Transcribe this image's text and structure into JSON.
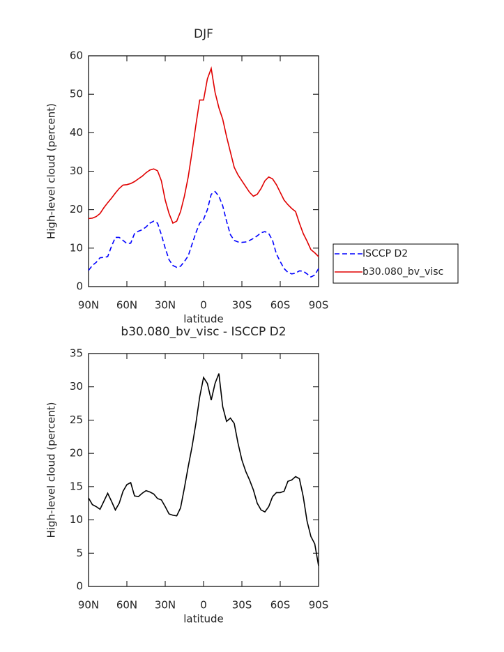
{
  "chart_data": [
    {
      "type": "line",
      "title": "DJF",
      "xlabel": "latitude",
      "ylabel": "High-level cloud (percent)",
      "x": [
        90,
        87,
        84,
        81,
        78,
        75,
        72,
        69,
        66,
        63,
        60,
        57,
        54,
        51,
        48,
        45,
        42,
        39,
        36,
        33,
        30,
        27,
        24,
        21,
        18,
        15,
        12,
        9,
        6,
        3,
        0,
        -3,
        -6,
        -9,
        -12,
        -15,
        -18,
        -21,
        -24,
        -27,
        -30,
        -33,
        -36,
        -39,
        -42,
        -45,
        -48,
        -51,
        -54,
        -57,
        -60,
        -63,
        -66,
        -69,
        -72,
        -75,
        -78,
        -81,
        -84,
        -87,
        -90
      ],
      "series": [
        {
          "name": "ISCCP D2",
          "color": "#0000ff",
          "style": "dashed",
          "values": [
            4.2,
            5.5,
            6.3,
            7.5,
            7.6,
            7.8,
            10.5,
            12.8,
            12.8,
            12,
            11.2,
            11.3,
            13.8,
            14.4,
            14.8,
            15.5,
            16.5,
            17,
            16.5,
            13.5,
            10,
            7,
            5.5,
            5,
            5.3,
            6.5,
            8,
            11,
            14,
            16.5,
            17.5,
            20,
            24,
            24.7,
            23.5,
            21,
            17,
            13.5,
            12,
            11.6,
            11.5,
            11.6,
            12,
            12.5,
            13.2,
            14,
            14.3,
            13.8,
            12,
            8.5,
            6.5,
            4.7,
            3.7,
            3.3,
            3.5,
            4.1,
            4,
            3.3,
            2.5,
            3,
            4.7
          ]
        },
        {
          "name": "b30.080_bv_visc",
          "color": "#e00000",
          "style": "solid",
          "values": [
            17.7,
            17.8,
            18.2,
            19,
            20.5,
            21.8,
            23,
            24.3,
            25.5,
            26.4,
            26.5,
            26.8,
            27.3,
            28,
            28.7,
            29.6,
            30.3,
            30.6,
            30.1,
            27.5,
            22.5,
            19,
            16.5,
            17,
            19.5,
            23.5,
            28.5,
            35,
            42,
            48.5,
            48.5,
            54,
            56.7,
            50.5,
            46.5,
            43.5,
            39,
            35,
            31,
            29,
            27.5,
            26,
            24.5,
            23.5,
            24,
            25.5,
            27.5,
            28.5,
            28,
            26.5,
            24.5,
            22.5,
            21.3,
            20.3,
            19.5,
            16.5,
            13.8,
            11.8,
            9.6,
            8.8,
            7.8
          ]
        }
      ],
      "xlim": [
        90,
        -90
      ],
      "xticks": [
        {
          "value": 90,
          "label": "90N"
        },
        {
          "value": 60,
          "label": "60N"
        },
        {
          "value": 30,
          "label": "30N"
        },
        0,
        {
          "value": -30,
          "label": "30S"
        },
        {
          "value": -60,
          "label": "60S"
        },
        {
          "value": -90,
          "label": "90S"
        }
      ],
      "ylim": [
        0,
        60
      ],
      "yticks": [
        0,
        10,
        20,
        30,
        40,
        50,
        60
      ],
      "legend": "right"
    },
    {
      "type": "line",
      "title": "b30.080_bv_visc - ISCCP D2",
      "xlabel": "latitude",
      "ylabel": "High-level cloud (percent)",
      "x": [
        90,
        87,
        84,
        81,
        78,
        75,
        72,
        69,
        66,
        63,
        60,
        57,
        54,
        51,
        48,
        45,
        42,
        39,
        36,
        33,
        30,
        27,
        24,
        21,
        18,
        15,
        12,
        9,
        6,
        3,
        0,
        -3,
        -6,
        -9,
        -12,
        -15,
        -18,
        -21,
        -24,
        -27,
        -30,
        -33,
        -36,
        -39,
        -42,
        -45,
        -48,
        -51,
        -54,
        -57,
        -60,
        -63,
        -66,
        -69,
        -72,
        -75,
        -78,
        -81,
        -84,
        -87,
        -90
      ],
      "series": [
        {
          "color": "#000000",
          "style": "solid",
          "values": [
            13.3,
            12.3,
            12,
            11.6,
            12.8,
            14,
            12.8,
            11.5,
            12.5,
            14.3,
            15.3,
            15.6,
            13.6,
            13.5,
            14,
            14.4,
            14.2,
            13.9,
            13.2,
            13,
            12,
            10.9,
            10.7,
            10.6,
            11.8,
            14.8,
            18,
            21,
            24.5,
            28.5,
            31.4,
            30.5,
            28,
            30.5,
            32,
            27,
            24.8,
            25.3,
            24.5,
            21.5,
            19,
            17.3,
            16,
            14.5,
            12.5,
            11.5,
            11.2,
            12,
            13.5,
            14.1,
            14.1,
            14.3,
            15.8,
            16,
            16.5,
            16.2,
            13.5,
            9.8,
            7.5,
            6.4,
            3.1
          ]
        }
      ],
      "xlim": [
        90,
        -90
      ],
      "xticks": [
        {
          "value": 90,
          "label": "90N"
        },
        {
          "value": 60,
          "label": "60N"
        },
        {
          "value": 30,
          "label": "30N"
        },
        0,
        {
          "value": -30,
          "label": "30S"
        },
        {
          "value": -60,
          "label": "60S"
        },
        {
          "value": -90,
          "label": "90S"
        }
      ],
      "ylim": [
        0,
        35
      ],
      "yticks": [
        0,
        5,
        10,
        15,
        20,
        25,
        30,
        35
      ]
    }
  ]
}
